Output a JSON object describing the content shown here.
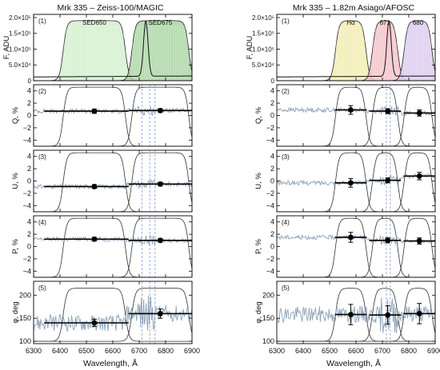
{
  "chart_data": {
    "type": "line",
    "columns": [
      {
        "title": "Mrk 335   –   Zeiss-100/MAGIC",
        "xlabel": "Wavelength, Å",
        "filters": [
          {
            "label": "SED650",
            "start": 6400,
            "end": 6660,
            "color": "#cdeec7",
            "opacity": 0.75
          },
          {
            "label": "SED675",
            "start": 6660,
            "end": 6900,
            "color": "#a6d39f",
            "opacity": 0.8
          }
        ],
        "markers": [
          {
            "x": 6530,
            "q": 0.7,
            "qe": 0.35,
            "u": -0.9,
            "ue": 0.3,
            "p": 1.2,
            "pe": 0.3,
            "phi": 140,
            "phie": 8
          },
          {
            "x": 6780,
            "q": 0.8,
            "qe": 0.3,
            "u": -0.5,
            "ue": 0.3,
            "p": 1.0,
            "pe": 0.3,
            "phi": 160,
            "phie": 10
          }
        ],
        "steps": [
          {
            "x1": 6340,
            "x2": 6660,
            "q": 0.7,
            "u": -0.9,
            "p": 1.2,
            "phi": 140
          },
          {
            "x1": 6660,
            "x2": 6900,
            "q": 0.8,
            "u": -0.5,
            "p": 1.0,
            "phi": 160
          }
        ],
        "vlines": [
          6710,
          6740,
          6760
        ]
      },
      {
        "title": "Mrk 335   –   1.82m Asiago/AFOSC",
        "xlabel": "Wavelength, Å",
        "filters": [
          {
            "label": "Hα",
            "start": 6510,
            "end": 6650,
            "color": "#f3ecb2",
            "opacity": 0.85
          },
          {
            "label": "671",
            "start": 6650,
            "end": 6770,
            "color": "#f6c2c8",
            "opacity": 0.85
          },
          {
            "label": "680",
            "start": 6770,
            "end": 6900,
            "color": "#dccbee",
            "opacity": 0.85
          }
        ],
        "markers": [
          {
            "x": 6580,
            "q": 0.9,
            "qe": 0.7,
            "u": -0.3,
            "ue": 0.7,
            "p": 1.5,
            "pe": 0.8,
            "phi": 158,
            "phie": 22
          },
          {
            "x": 6720,
            "q": 0.7,
            "qe": 0.4,
            "u": 0.1,
            "ue": 0.4,
            "p": 1.0,
            "pe": 0.4,
            "phi": 157,
            "phie": 20
          },
          {
            "x": 6840,
            "q": 0.4,
            "qe": 0.5,
            "u": 0.8,
            "ue": 0.6,
            "p": 0.9,
            "pe": 0.5,
            "phi": 160,
            "phie": 22
          }
        ],
        "steps": [
          {
            "x1": 6520,
            "x2": 6640,
            "q": 0.9,
            "u": -0.3,
            "p": 1.5,
            "phi": 158
          },
          {
            "x1": 6650,
            "x2": 6770,
            "q": 0.7,
            "u": 0.1,
            "p": 1.0,
            "phi": 157
          },
          {
            "x1": 6780,
            "x2": 6900,
            "q": 0.4,
            "u": 0.8,
            "p": 0.9,
            "phi": 160
          }
        ],
        "vlines": [
          6715,
          6730
        ]
      }
    ],
    "panels": [
      {
        "num": "(1)",
        "ylabel": "F, ADU",
        "ylim": [
          0,
          210000
        ],
        "ticks": [
          "0",
          "5.0×10⁴",
          "1.0×10⁵",
          "1.5×10⁵",
          "2.0×10⁵"
        ],
        "tickvals": [
          0,
          50000,
          100000,
          150000,
          200000
        ]
      },
      {
        "num": "(2)",
        "ylabel": "Q, %",
        "ylim": [
          -5,
          5
        ],
        "ticks": [
          "−4",
          "−2",
          "0",
          "2",
          "4"
        ],
        "tickvals": [
          -4,
          -2,
          0,
          2,
          4
        ]
      },
      {
        "num": "(3)",
        "ylabel": "U, %",
        "ylim": [
          -5,
          5
        ],
        "ticks": [
          "−4",
          "−2",
          "0",
          "2",
          "4"
        ],
        "tickvals": [
          -4,
          -2,
          0,
          2,
          4
        ]
      },
      {
        "num": "(4)",
        "ylabel": "P, %",
        "ylim": [
          -5,
          5
        ],
        "ticks": [
          "−4",
          "−2",
          "0",
          "2",
          "4"
        ],
        "tickvals": [
          -4,
          -2,
          0,
          2,
          4
        ]
      },
      {
        "num": "(5)",
        "ylabel": "φ, deg",
        "ylim": [
          95,
          230
        ],
        "ticks": [
          "100",
          "150",
          "200"
        ],
        "tickvals": [
          100,
          150,
          200
        ]
      }
    ],
    "xlim": [
      6300,
      6900
    ],
    "xticks": [
      "6300",
      "6400",
      "6500",
      "6600",
      "6700",
      "6800",
      "6900"
    ],
    "xtickvals": [
      6300,
      6400,
      6500,
      6600,
      6700,
      6800,
      6900
    ],
    "colors": {
      "spectrum": "#8da2b8",
      "curve": "#222222",
      "step": "#000000",
      "vline": "#8899cc"
    }
  }
}
